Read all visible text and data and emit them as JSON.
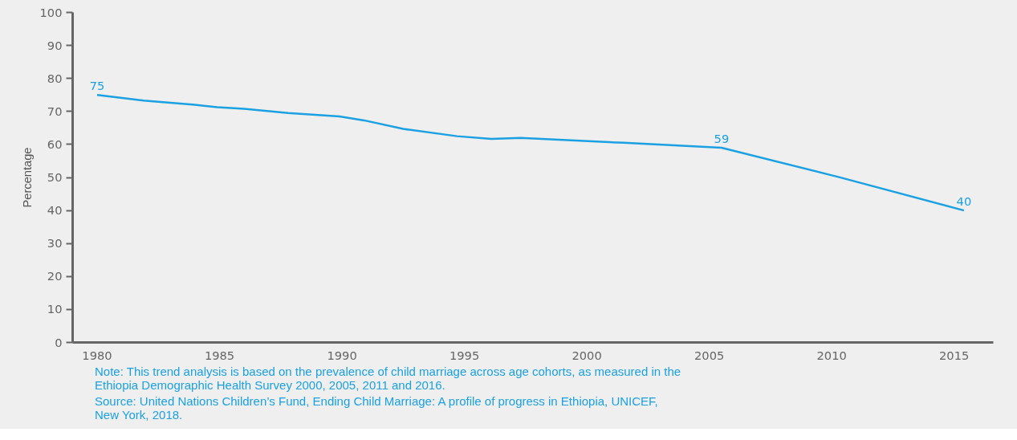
{
  "chart_data": {
    "type": "line",
    "ylabel": "Percentage",
    "x": [
      1980,
      1981.9,
      1984,
      1984.9,
      1986,
      1987.8,
      1989.9,
      1990.9,
      1992.5,
      1994.7,
      1996.1,
      1997.3,
      2001.5,
      2005.5,
      2010.3,
      2015.4
    ],
    "series": [
      {
        "color": "#1ba1e2",
        "values": [
          75,
          73.3,
          72,
          71.3,
          70.8,
          69.5,
          68.5,
          67.3,
          64.7,
          62.5,
          61.7,
          62,
          60.5,
          59,
          50.1,
          40
        ],
        "value_labels": [
          "75",
          null,
          null,
          null,
          null,
          null,
          null,
          null,
          null,
          null,
          null,
          null,
          null,
          "59",
          null,
          "40"
        ]
      }
    ],
    "xlim": [
      1979,
      2016.6
    ],
    "xticks": [
      1980,
      1985,
      1990,
      1995,
      2000,
      2005,
      2010,
      2015
    ],
    "ylim": [
      0,
      100
    ],
    "yticks": [
      0,
      10,
      20,
      30,
      40,
      50,
      60,
      70,
      80,
      90,
      100
    ],
    "grid": false,
    "marker": "none",
    "line_style": "solid",
    "annotations": [
      "Note: This trend analysis is based on the prevalence of child marriage across age cohorts, as measured in the\nEthiopia Demographic Health Survey 2000, 2005, 2011 and 2016.",
      "Source: United Nations Children’s Fund, Ending Child Marriage: A profile of progress in Ethiopia, UNICEF,\nNew York, 2018."
    ]
  }
}
